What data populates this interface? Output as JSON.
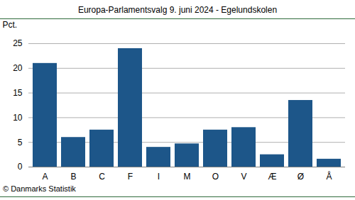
{
  "chart_data": {
    "type": "bar",
    "title": "Europa-Parlamentsvalg 9. juni 2024 - Egelundskolen",
    "caption": "© Danmarks Statistik",
    "y_label": "Pct.",
    "categories": [
      "A",
      "B",
      "C",
      "F",
      "I",
      "M",
      "O",
      "V",
      "Æ",
      "Ø",
      "Å"
    ],
    "values": [
      21,
      6,
      7.5,
      24,
      4,
      4.7,
      7.5,
      8,
      2.5,
      13.5,
      1.6
    ],
    "color": "#1d5689",
    "ylim": [
      0,
      25
    ],
    "yticks": [
      0,
      5,
      10,
      15,
      20,
      25
    ],
    "grid": true
  }
}
